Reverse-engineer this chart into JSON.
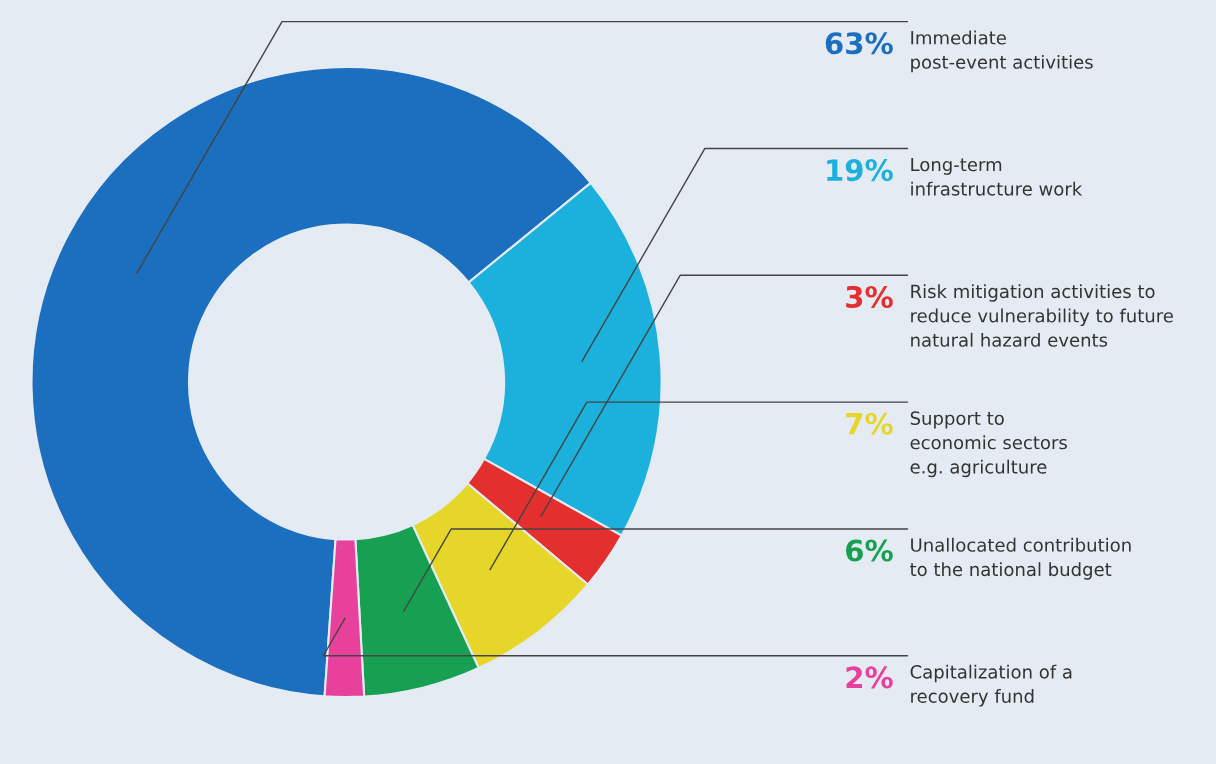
{
  "chart_data": {
    "type": "donut",
    "categories": [
      "Immediate\npost-event activities",
      "Long-term\ninfrastructure work",
      "Risk mitigation activities to\nreduce vulnerability to future\nnatural hazard events",
      "Support to\neconomic sectors\ne.g. agriculture",
      "Unallocated contribution\nto the national budget",
      "Capitalization of a\nrecovery fund"
    ],
    "values": [
      63,
      19,
      3,
      7,
      6,
      2
    ],
    "value_labels": [
      "63%",
      "19%",
      "3%",
      "7%",
      "6%",
      "2%"
    ],
    "colors": [
      "#1b6fbe",
      "#1cb0dd",
      "#e42f2f",
      "#e6d62a",
      "#17a052",
      "#e8419b"
    ],
    "legend": false
  }
}
